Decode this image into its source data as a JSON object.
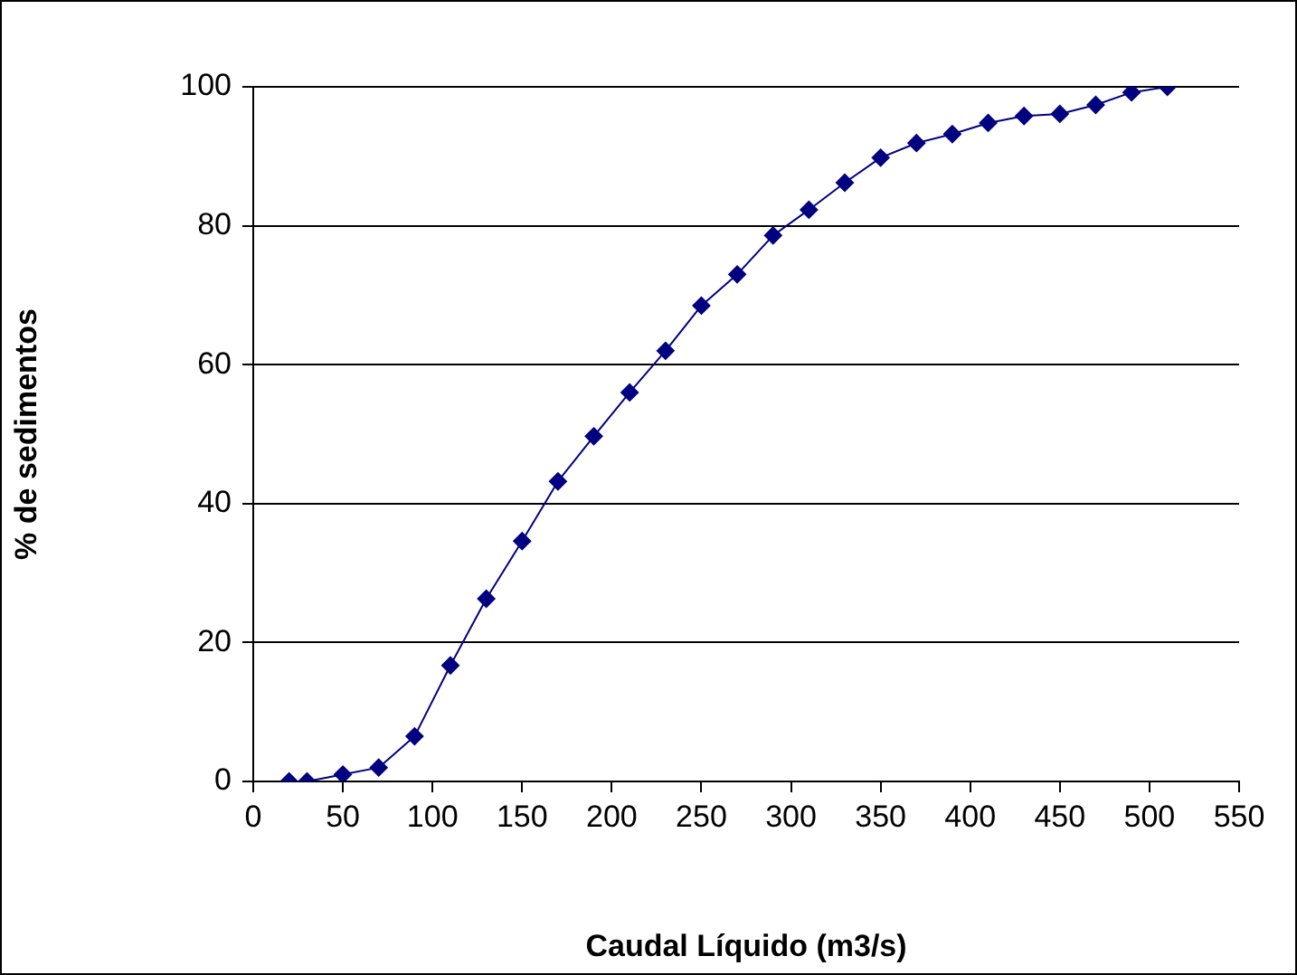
{
  "chart_data": {
    "type": "line",
    "xlabel": "Caudal Líquido (m3/s)",
    "ylabel": "% de sedimentos",
    "x": [
      20,
      30,
      50,
      70,
      90,
      110,
      130,
      150,
      170,
      190,
      210,
      230,
      250,
      270,
      290,
      310,
      330,
      350,
      370,
      390,
      410,
      430,
      450,
      470,
      490,
      510
    ],
    "series": [
      {
        "color": "#000080",
        "values": [
          0,
          0,
          1,
          2,
          6.5,
          16.7,
          26.3,
          34.6,
          43.2,
          49.7,
          56,
          62,
          68.5,
          73,
          78.6,
          82.3,
          86.2,
          89.8,
          91.9,
          93.2,
          94.8,
          95.8,
          96.1,
          97.4,
          99.2,
          100
        ]
      }
    ],
    "xlim": [
      0,
      550
    ],
    "xticks": [
      0,
      50,
      100,
      150,
      200,
      250,
      300,
      350,
      400,
      450,
      500,
      550
    ],
    "ylim": [
      0,
      100
    ],
    "yticks": [
      0,
      20,
      40,
      60,
      80,
      100
    ],
    "grid": "y",
    "legend": false,
    "marker": "diamond",
    "line_style": "solid"
  }
}
